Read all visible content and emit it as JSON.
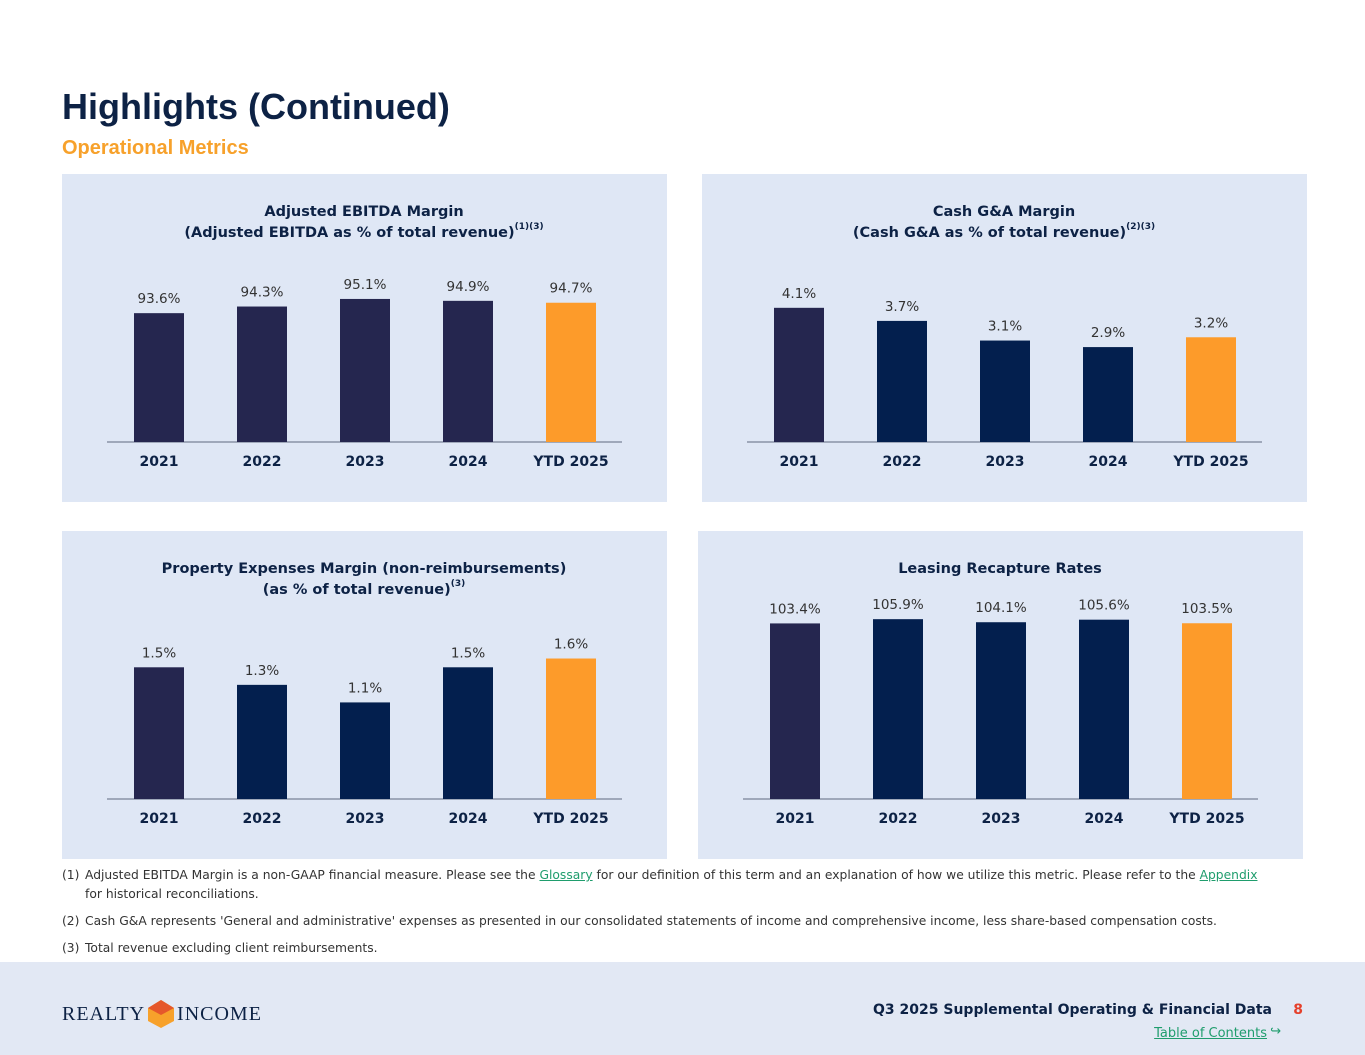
{
  "header": {
    "title": "Highlights (Continued)",
    "subtitle": "Operational Metrics"
  },
  "chart_data": [
    {
      "type": "bar",
      "title": [
        "Adjusted EBITDA Margin",
        "(Adjusted EBITDA as % of total revenue)"
      ],
      "title_note": "(1)(3)",
      "categories": [
        "2021",
        "2022",
        "2023",
        "2024",
        "YTD 2025"
      ],
      "values": [
        93.6,
        94.3,
        95.1,
        94.9,
        94.7
      ],
      "value_labels": [
        "93.6%",
        "94.3%",
        "95.1%",
        "94.9%",
        "94.7%"
      ],
      "colors": [
        "#25264f",
        "#25264f",
        "#25264f",
        "#25264f",
        "#fd9b2a"
      ],
      "ylim": [
        80,
        99
      ]
    },
    {
      "type": "bar",
      "title": [
        "Cash G&A Margin",
        "(Cash G&A as % of total revenue)"
      ],
      "title_note": "(2)(3)",
      "categories": [
        "2021",
        "2022",
        "2023",
        "2024",
        "YTD 2025"
      ],
      "values": [
        4.1,
        3.7,
        3.1,
        2.9,
        3.2
      ],
      "value_labels": [
        "4.1%",
        "3.7%",
        "3.1%",
        "2.9%",
        "3.2%"
      ],
      "colors": [
        "#25264f",
        "#031f4e",
        "#031f4e",
        "#031f4e",
        "#fd9b2a"
      ],
      "ylim": [
        0,
        5.5
      ]
    },
    {
      "type": "bar",
      "title": [
        "Property Expenses Margin (non-reimbursements)",
        "(as % of total revenue)"
      ],
      "title_note": "(3)",
      "categories": [
        "2021",
        "2022",
        "2023",
        "2024",
        "YTD 2025"
      ],
      "values": [
        1.5,
        1.3,
        1.1,
        1.5,
        1.6
      ],
      "value_labels": [
        "1.5%",
        "1.3%",
        "1.1%",
        "1.5%",
        "1.6%"
      ],
      "colors": [
        "#25264f",
        "#031f4e",
        "#031f4e",
        "#031f4e",
        "#fd9b2a"
      ],
      "ylim": [
        0,
        2.05
      ]
    },
    {
      "type": "bar",
      "title": [
        "Leasing Recapture Rates"
      ],
      "categories": [
        "2021",
        "2022",
        "2023",
        "2024",
        "YTD 2025"
      ],
      "values": [
        103.4,
        105.9,
        104.1,
        105.6,
        103.5
      ],
      "value_labels": [
        "103.4%",
        "105.9%",
        "104.1%",
        "105.6%",
        "103.5%"
      ],
      "colors": [
        "#25264f",
        "#031f4e",
        "#031f4e",
        "#031f4e",
        "#fd9b2a"
      ],
      "ylim": [
        0,
        106
      ]
    }
  ],
  "footnotes": [
    {
      "marker": "(1)",
      "parts": [
        {
          "text": "Adjusted EBITDA Margin is a non-GAAP financial measure. Please see the "
        },
        {
          "link": "Glossary"
        },
        {
          "text": " for our definition of this term and an explanation of how we utilize this metric. Please refer to the "
        },
        {
          "link": "Appendix"
        },
        {
          "text": " for historical reconciliations."
        }
      ]
    },
    {
      "marker": "(2)",
      "parts": [
        {
          "text": "Cash G&A represents 'General and administrative' expenses as presented in our consolidated statements of income and comprehensive income, less share-based compensation costs."
        }
      ]
    },
    {
      "marker": "(3)",
      "parts": [
        {
          "text": "Total revenue excluding client reimbursements."
        }
      ]
    }
  ],
  "footer": {
    "logo": [
      "REALTY",
      "INCOME"
    ],
    "document": "Q3 2025 Supplemental Operating & Financial Data",
    "page": 8,
    "toc": "Table of Contents"
  }
}
